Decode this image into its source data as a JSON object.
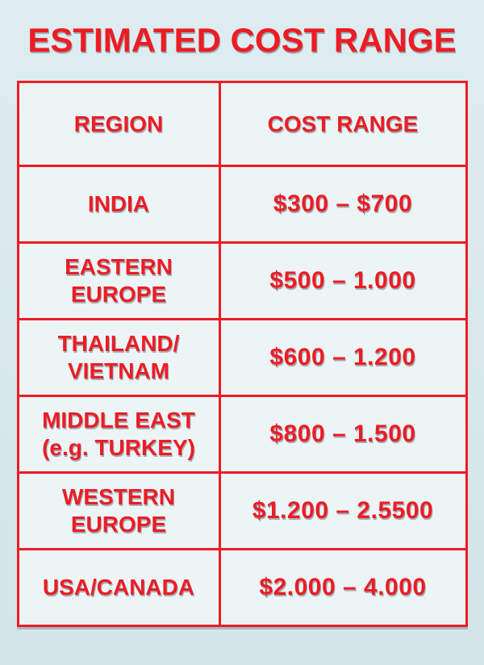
{
  "page": {
    "title": "ESTIMATED COST RANGE"
  },
  "colors": {
    "accent": "#ed1c24",
    "background": "#d9e9ed",
    "cell": "#edf4f6"
  },
  "table": {
    "headers": [
      "REGION",
      "COST RANGE"
    ],
    "rows": [
      {
        "region": "INDIA",
        "cost": "$300 – $700"
      },
      {
        "region": "EASTERN\nEUROPE",
        "cost": "$500 – 1.000"
      },
      {
        "region": "THAILAND/\nVIETNAM",
        "cost": "$600 – 1.200"
      },
      {
        "region": "MIDDLE EAST\n(e.g. TURKEY)",
        "cost": "$800 – 1.500"
      },
      {
        "region": "WESTERN\nEUROPE",
        "cost": "$1.200 – 2.5500"
      },
      {
        "region": "USA/CANADA",
        "cost": "$2.000 – 4.000"
      }
    ]
  },
  "chart_data": {
    "type": "table",
    "title": "ESTIMATED COST RANGE",
    "columns": [
      "REGION",
      "COST RANGE"
    ],
    "rows": [
      [
        "INDIA",
        "$300 – $700"
      ],
      [
        "EASTERN EUROPE",
        "$500 – 1.000"
      ],
      [
        "THAILAND/VIETNAM",
        "$600 – 1.200"
      ],
      [
        "MIDDLE EAST (e.g. TURKEY)",
        "$800 – 1.500"
      ],
      [
        "WESTERN EUROPE",
        "$1.200 – 2.5500"
      ],
      [
        "USA/CANADA",
        "$2.000 – 4.000"
      ]
    ]
  }
}
